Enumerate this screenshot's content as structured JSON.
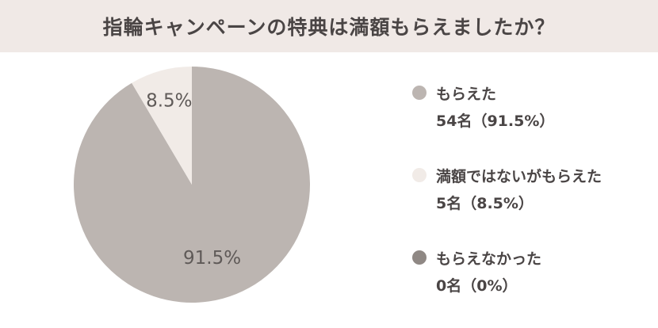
{
  "title": "指輪キャンペーンの特典は満額もらえましたか？",
  "chart_data": {
    "type": "pie",
    "title": "指輪キャンペーンの特典は満額もらえましたか？",
    "slices": [
      {
        "label": "もらえた",
        "count": 54,
        "value": 91.5,
        "color": "#bcb5b1",
        "display": "91.5%",
        "legend_value": "54名（91.5%）"
      },
      {
        "label": "満額ではないがもらえた",
        "count": 5,
        "value": 8.5,
        "color": "#f1ebe7",
        "display": "8.5%",
        "legend_value": "5名（8.5%）"
      },
      {
        "label": "もらえなかった",
        "count": 0,
        "value": 0,
        "color": "#8f8884",
        "display": "",
        "legend_value": "0名（0%）"
      }
    ],
    "legend_position": "right"
  }
}
